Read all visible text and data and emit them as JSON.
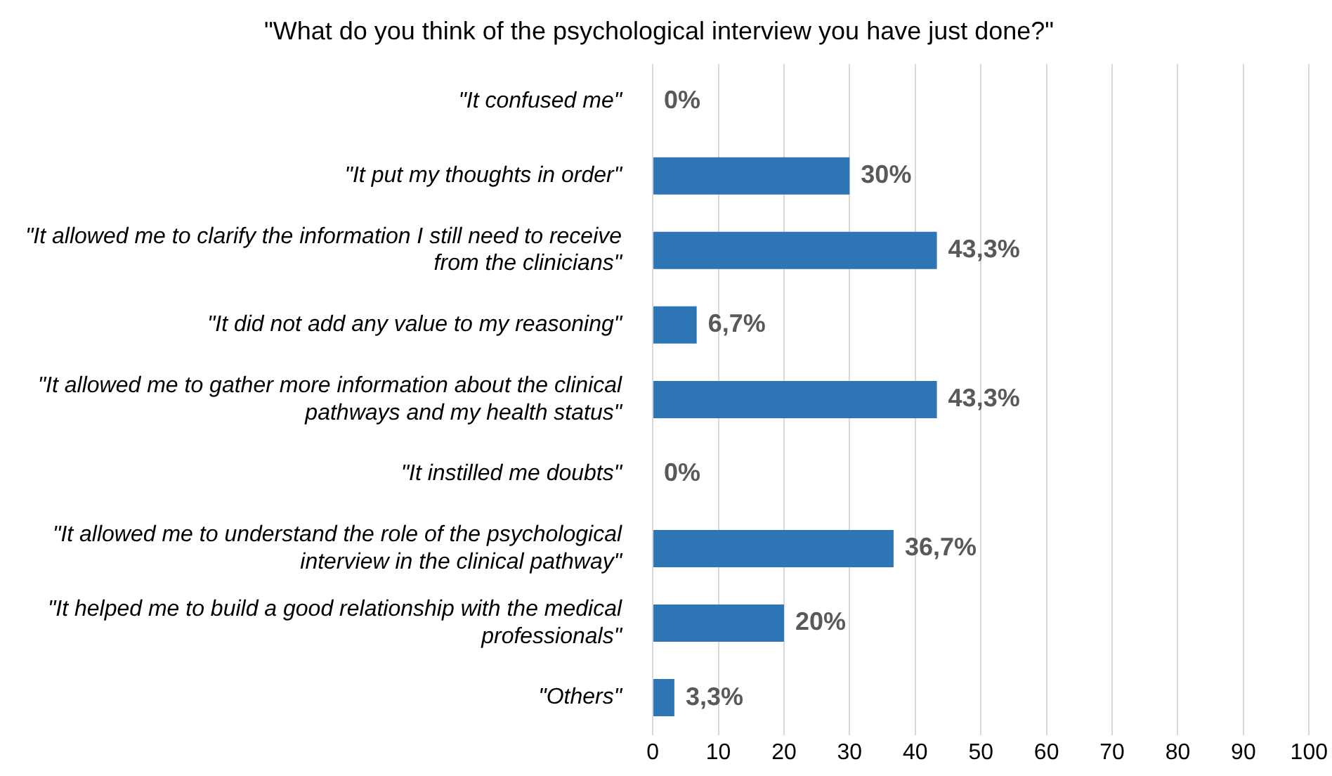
{
  "chart_data": {
    "type": "bar",
    "orientation": "horizontal",
    "title": "\"What do you think of the psychological interview you have just done?\"",
    "categories": [
      "\"It confused me\"",
      "\"It put my thoughts in order\"",
      "\"It allowed me to clarify the information I still need to receive from the clinicians\"",
      "\"It did not add any value to my reasoning\"",
      "\"It allowed me to gather more information about the clinical pathways and my health status\"",
      "\"It instilled me doubts\"",
      "\"It allowed me to understand the role of the psychological interview in the clinical pathway\"",
      "\"It helped me to build a good relationship with the medical professionals\"",
      "\"Others\""
    ],
    "values": [
      0,
      30,
      43.3,
      6.7,
      43.3,
      0,
      36.7,
      20,
      3.3
    ],
    "value_labels": [
      "0%",
      "30%",
      "43,3%",
      "6,7%",
      "43,3%",
      "0%",
      "36,7%",
      "20%",
      "3,3%"
    ],
    "color": "#2e75b6",
    "xlim": [
      0,
      100
    ],
    "xticks": [
      0,
      10,
      20,
      30,
      40,
      50,
      60,
      70,
      80,
      90,
      100
    ],
    "grid": "x",
    "legend": false
  }
}
